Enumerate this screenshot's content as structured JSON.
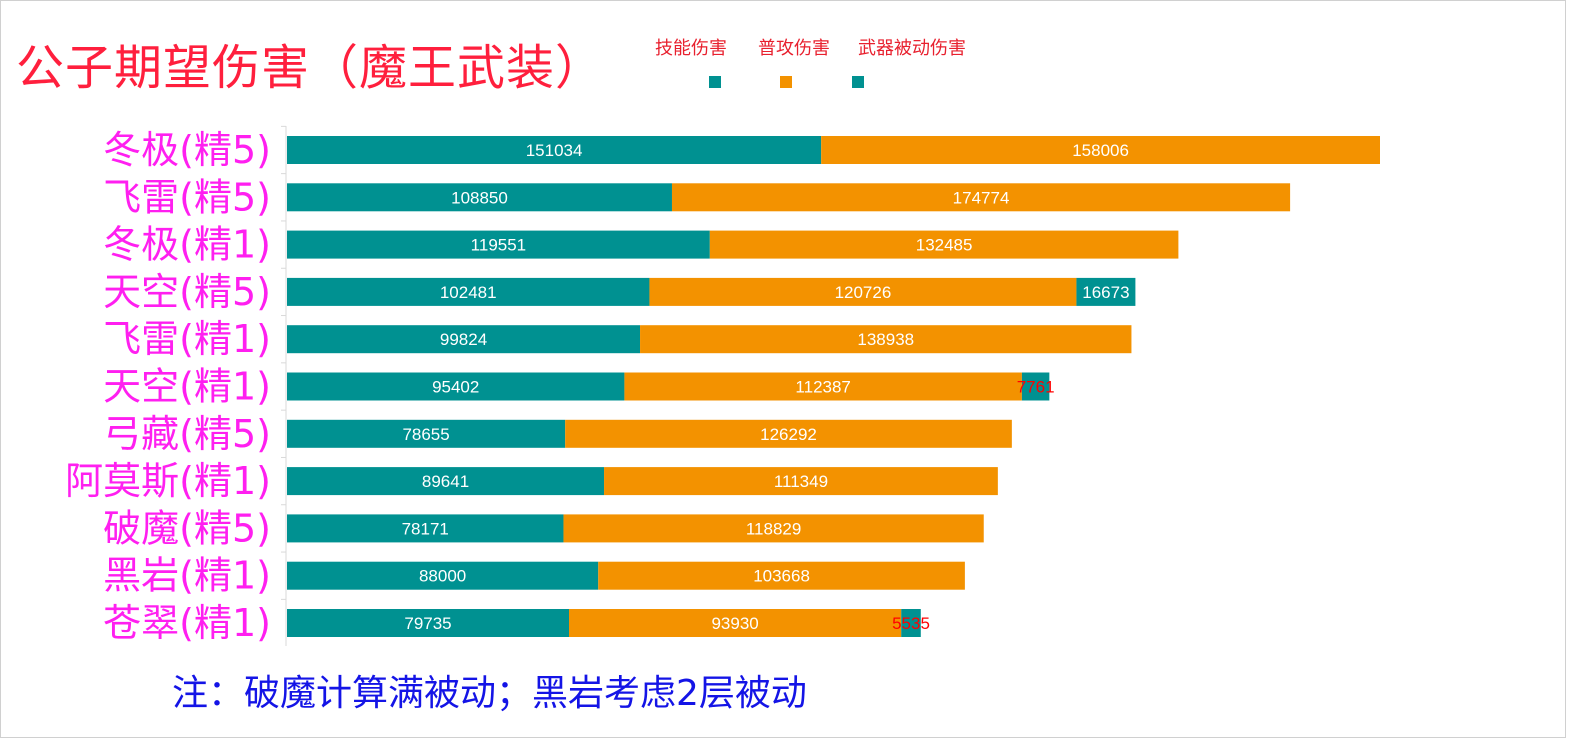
{
  "title": "公子期望伤害（魔王武装）",
  "note": "注：破魔计算满被动；黑岩考虑2层被动",
  "colors": {
    "skill": "#009191",
    "normal": "#f39200",
    "passive": "#009191",
    "category_label": "#ff1ff0",
    "value_label_light": "#ffffff",
    "value_label_small": "#ff0000",
    "title": "#ff1f3d",
    "note": "#1414e6"
  },
  "chart_data": {
    "type": "bar",
    "orientation": "horizontal",
    "stacked": true,
    "legend_position": "top",
    "grid": false,
    "categories": [
      "冬极(精5)",
      "飞雷(精5)",
      "冬极(精1)",
      "天空(精5)",
      "飞雷(精1)",
      "天空(精1)",
      "弓藏(精5)",
      "阿莫斯(精1)",
      "破魔(精5)",
      "黑岩(精1)",
      "苍翠(精1)"
    ],
    "series": [
      {
        "name": "技能伤害",
        "values": [
          151034,
          108850,
          119551,
          102481,
          99824,
          95402,
          78655,
          89641,
          78171,
          88000,
          79735
        ]
      },
      {
        "name": "普攻伤害",
        "values": [
          158006,
          174774,
          132485,
          120726,
          138938,
          112387,
          126292,
          111349,
          118829,
          103668,
          93930
        ]
      },
      {
        "name": "武器被动伤害",
        "values": [
          null,
          null,
          null,
          16673,
          null,
          7761,
          null,
          null,
          null,
          null,
          5535
        ]
      }
    ]
  }
}
